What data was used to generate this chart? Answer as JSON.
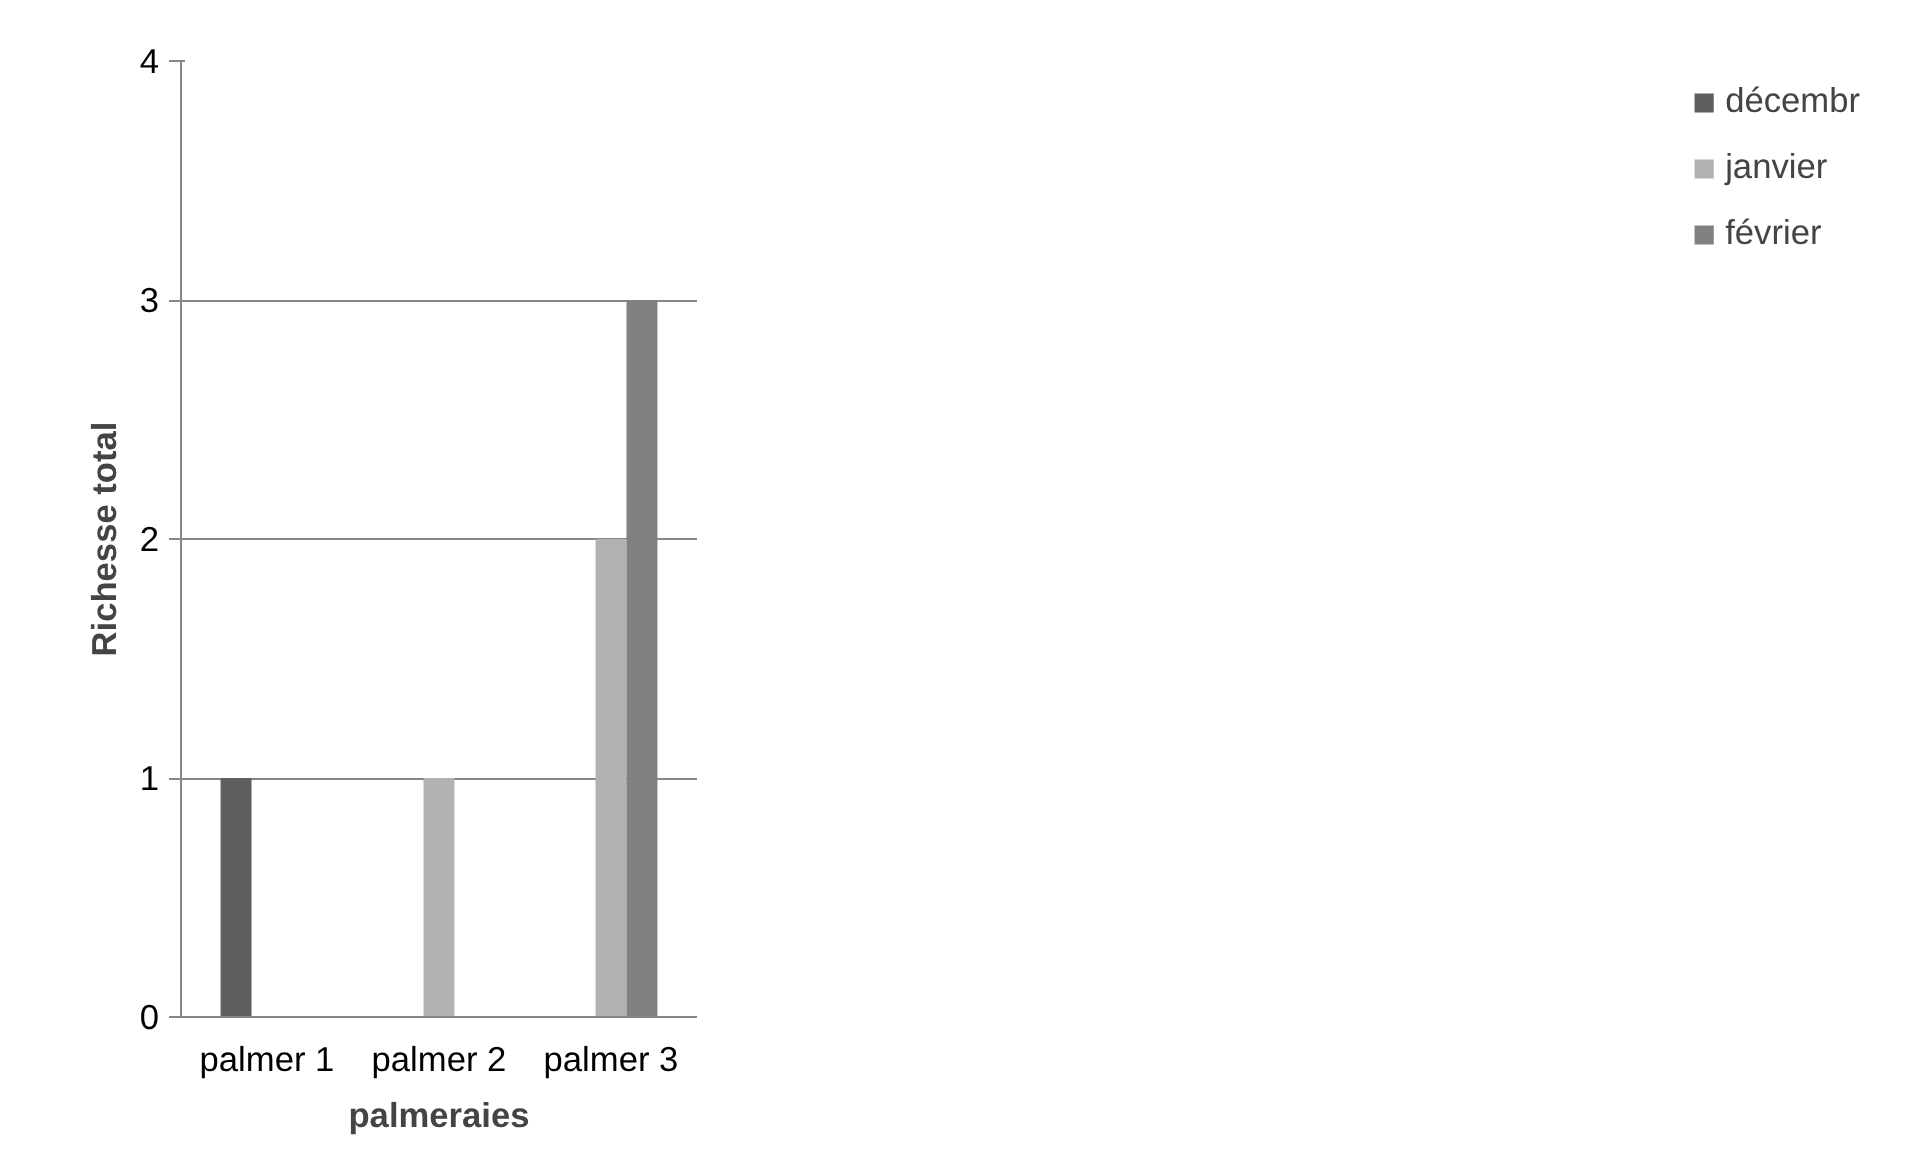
{
  "chart_data": {
    "type": "bar",
    "xlabel": "palmeraies",
    "ylabel": "Richesse total",
    "categories": [
      "palmer 1",
      "palmer 2",
      "palmer 3"
    ],
    "series": [
      {
        "name": "décembr",
        "color": "#5f5f5f",
        "values": [
          1,
          0,
          0
        ]
      },
      {
        "name": "janvier",
        "color": "#b2b2b2",
        "values": [
          0,
          1,
          2
        ]
      },
      {
        "name": "février",
        "color": "#808080",
        "values": [
          0,
          0,
          3
        ]
      }
    ],
    "ylim": [
      0,
      4
    ],
    "yticks": [
      0,
      1,
      2,
      3,
      4
    ],
    "grid": "y",
    "legend": "right"
  }
}
